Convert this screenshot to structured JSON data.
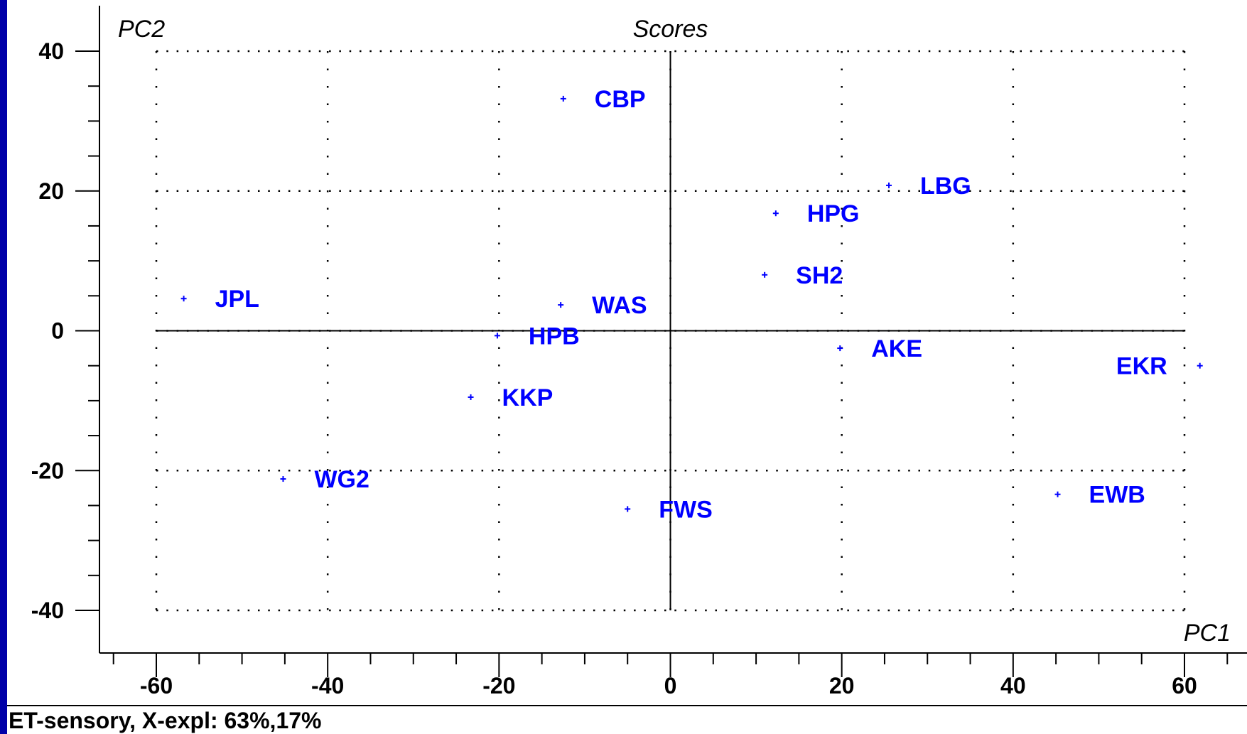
{
  "chart_data": {
    "type": "scatter",
    "title": "Scores",
    "xlabel": "PC1",
    "ylabel": "PC2",
    "xlim": [
      -60,
      60
    ],
    "ylim": [
      -40,
      40
    ],
    "xticks": [
      -60,
      -40,
      -20,
      0,
      20,
      40,
      60
    ],
    "yticks": [
      -40,
      -20,
      0,
      20,
      40
    ],
    "grid": true,
    "point_color": "#0000ff",
    "points": [
      {
        "label": "CBP",
        "x": -12.5,
        "y": 33.2
      },
      {
        "label": "LBG",
        "x": 25.5,
        "y": 20.8
      },
      {
        "label": "HPG",
        "x": 12.3,
        "y": 16.8
      },
      {
        "label": "SH2",
        "x": 11.0,
        "y": 8.0
      },
      {
        "label": "JPL",
        "x": -56.8,
        "y": 4.6
      },
      {
        "label": "WAS",
        "x": -12.8,
        "y": 3.7
      },
      {
        "label": "HPB",
        "x": -20.2,
        "y": -0.7
      },
      {
        "label": "AKE",
        "x": 19.8,
        "y": -2.5
      },
      {
        "label": "EKR",
        "x": 61.8,
        "y": -5.0
      },
      {
        "label": "KKP",
        "x": -23.3,
        "y": -9.5
      },
      {
        "label": "WG2",
        "x": -45.2,
        "y": -21.2
      },
      {
        "label": "EWB",
        "x": 45.2,
        "y": -23.4
      },
      {
        "label": "FWS",
        "x": -5.0,
        "y": -25.5
      }
    ]
  },
  "footer": {
    "caption": "ET-sensory, X-expl: 63%,17%"
  }
}
